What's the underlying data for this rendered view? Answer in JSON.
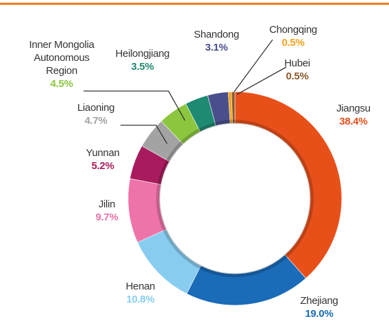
{
  "chart_data": {
    "type": "donut",
    "categories": [
      "Jiangsu",
      "Zhejiang",
      "Henan",
      "Jilin",
      "Yunnan",
      "Liaoning",
      "Inner Mongolia Autonomous Region",
      "Heilongjiang",
      "Shandong",
      "Chongqing",
      "Hubei"
    ],
    "values": [
      38.4,
      19.0,
      10.8,
      9.7,
      5.2,
      4.7,
      4.5,
      3.5,
      3.1,
      0.5,
      0.5
    ],
    "value_labels": [
      "38.4%",
      "19.0%",
      "10.8%",
      "9.7%",
      "5.2%",
      "4.7%",
      "4.5%",
      "3.5%",
      "3.1%",
      "0.5%",
      "0.5%"
    ],
    "colors": [
      "#e8501a",
      "#1a6bb8",
      "#88cdf0",
      "#ee73a8",
      "#a81c5e",
      "#a3a3a3",
      "#8cc63f",
      "#1f8a72",
      "#4a4f8c",
      "#f7a11a",
      "#8a5a2b"
    ]
  }
}
